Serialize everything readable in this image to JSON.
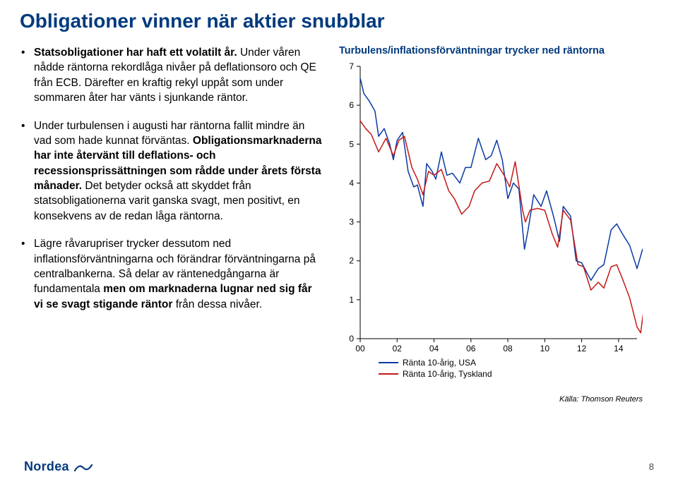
{
  "title": "Obligationer vinner när aktier snubblar",
  "bullets": {
    "b1_a": "Statsobligationer har haft ett volatilt år.",
    "b1_b": " Under våren nådde räntorna rekordlåga nivåer på deflationsoro och QE från ECB. Därefter en kraftig rekyl uppåt som under sommaren åter har vänts i sjunkande räntor.",
    "b2_a": "Under turbulensen i augusti har räntorna fallit mindre än vad som hade kunnat förväntas. ",
    "b2_b": "Obligationsmarknaderna har inte återvänt till deflations- och recessionsprissättningen som rådde under årets första månader.",
    "b2_c": " Det betyder också att skyddet från statsobligationerna varit ganska svagt, men positivt, en konsekvens av de redan låga räntorna.",
    "b3_a": "Lägre råvarupriser trycker dessutom ned inflationsförväntningarna och förändrar förväntningarna på centralbankerna. Så delar av räntenedgångarna är fundamentala ",
    "b3_b": "men om marknaderna lugnar ned sig får vi se svagt stigande räntor",
    "b3_c": " från dessa nivåer."
  },
  "chart": {
    "title": "Turbulens/inflationsförväntningar trycker ned räntorna",
    "type": "line",
    "background_color": "#ffffff",
    "axis_color": "#000000",
    "line_width": 1.5,
    "ylim": [
      0,
      7
    ],
    "yticks": [
      0,
      1,
      2,
      3,
      4,
      5,
      6,
      7
    ],
    "xlim": [
      2000,
      2015
    ],
    "xticks": [
      2000,
      2002,
      2004,
      2006,
      2008,
      2010,
      2012,
      2014
    ],
    "xtick_labels": [
      "00",
      "02",
      "04",
      "06",
      "08",
      "10",
      "12",
      "14"
    ],
    "series": [
      {
        "name": "usa",
        "legend": "Ränta 10-årig, USA",
        "color": "#0a3aa3",
        "data": [
          [
            2000.0,
            6.7
          ],
          [
            2000.2,
            6.3
          ],
          [
            2000.5,
            6.1
          ],
          [
            2000.8,
            5.85
          ],
          [
            2001.0,
            5.2
          ],
          [
            2001.3,
            5.4
          ],
          [
            2001.6,
            5.0
          ],
          [
            2001.8,
            4.6
          ],
          [
            2002.0,
            5.1
          ],
          [
            2002.3,
            5.3
          ],
          [
            2002.6,
            4.3
          ],
          [
            2002.9,
            3.9
          ],
          [
            2003.1,
            3.95
          ],
          [
            2003.4,
            3.4
          ],
          [
            2003.6,
            4.5
          ],
          [
            2003.9,
            4.3
          ],
          [
            2004.1,
            4.1
          ],
          [
            2004.4,
            4.8
          ],
          [
            2004.7,
            4.2
          ],
          [
            2005.0,
            4.25
          ],
          [
            2005.4,
            4.0
          ],
          [
            2005.7,
            4.4
          ],
          [
            2006.0,
            4.4
          ],
          [
            2006.4,
            5.15
          ],
          [
            2006.8,
            4.6
          ],
          [
            2007.1,
            4.7
          ],
          [
            2007.4,
            5.1
          ],
          [
            2007.7,
            4.6
          ],
          [
            2008.0,
            3.6
          ],
          [
            2008.3,
            4.0
          ],
          [
            2008.6,
            3.85
          ],
          [
            2008.9,
            2.3
          ],
          [
            2009.1,
            2.8
          ],
          [
            2009.4,
            3.7
          ],
          [
            2009.8,
            3.4
          ],
          [
            2010.1,
            3.8
          ],
          [
            2010.5,
            3.1
          ],
          [
            2010.8,
            2.5
          ],
          [
            2011.0,
            3.4
          ],
          [
            2011.4,
            3.15
          ],
          [
            2011.7,
            2.0
          ],
          [
            2012.0,
            1.95
          ],
          [
            2012.5,
            1.5
          ],
          [
            2012.9,
            1.8
          ],
          [
            2013.2,
            1.9
          ],
          [
            2013.6,
            2.8
          ],
          [
            2013.9,
            2.95
          ],
          [
            2014.2,
            2.7
          ],
          [
            2014.6,
            2.4
          ],
          [
            2015.0,
            1.8
          ],
          [
            2015.3,
            2.3
          ],
          [
            2015.6,
            2.1
          ]
        ]
      },
      {
        "name": "germany",
        "legend": "Ränta 10-årig, Tyskland",
        "color": "#c41818",
        "data": [
          [
            2000.0,
            5.6
          ],
          [
            2000.3,
            5.4
          ],
          [
            2000.6,
            5.25
          ],
          [
            2001.0,
            4.8
          ],
          [
            2001.4,
            5.15
          ],
          [
            2001.8,
            4.7
          ],
          [
            2002.1,
            5.1
          ],
          [
            2002.4,
            5.2
          ],
          [
            2002.8,
            4.4
          ],
          [
            2003.1,
            4.1
          ],
          [
            2003.4,
            3.7
          ],
          [
            2003.7,
            4.3
          ],
          [
            2004.0,
            4.2
          ],
          [
            2004.4,
            4.35
          ],
          [
            2004.8,
            3.8
          ],
          [
            2005.1,
            3.6
          ],
          [
            2005.5,
            3.2
          ],
          [
            2005.9,
            3.4
          ],
          [
            2006.2,
            3.8
          ],
          [
            2006.6,
            4.0
          ],
          [
            2007.0,
            4.05
          ],
          [
            2007.4,
            4.5
          ],
          [
            2007.8,
            4.2
          ],
          [
            2008.1,
            3.9
          ],
          [
            2008.4,
            4.55
          ],
          [
            2008.8,
            3.3
          ],
          [
            2008.95,
            3.0
          ],
          [
            2009.2,
            3.3
          ],
          [
            2009.6,
            3.35
          ],
          [
            2010.0,
            3.3
          ],
          [
            2010.4,
            2.7
          ],
          [
            2010.7,
            2.35
          ],
          [
            2011.0,
            3.3
          ],
          [
            2011.4,
            3.05
          ],
          [
            2011.8,
            1.9
          ],
          [
            2012.1,
            1.85
          ],
          [
            2012.5,
            1.25
          ],
          [
            2012.9,
            1.45
          ],
          [
            2013.2,
            1.3
          ],
          [
            2013.6,
            1.85
          ],
          [
            2013.9,
            1.9
          ],
          [
            2014.2,
            1.55
          ],
          [
            2014.6,
            1.05
          ],
          [
            2015.0,
            0.3
          ],
          [
            2015.2,
            0.15
          ],
          [
            2015.4,
            0.9
          ],
          [
            2015.6,
            0.65
          ]
        ]
      }
    ],
    "source": "Källa: Thomson Reuters"
  },
  "logo_text": "Nordea",
  "page_number": "8"
}
